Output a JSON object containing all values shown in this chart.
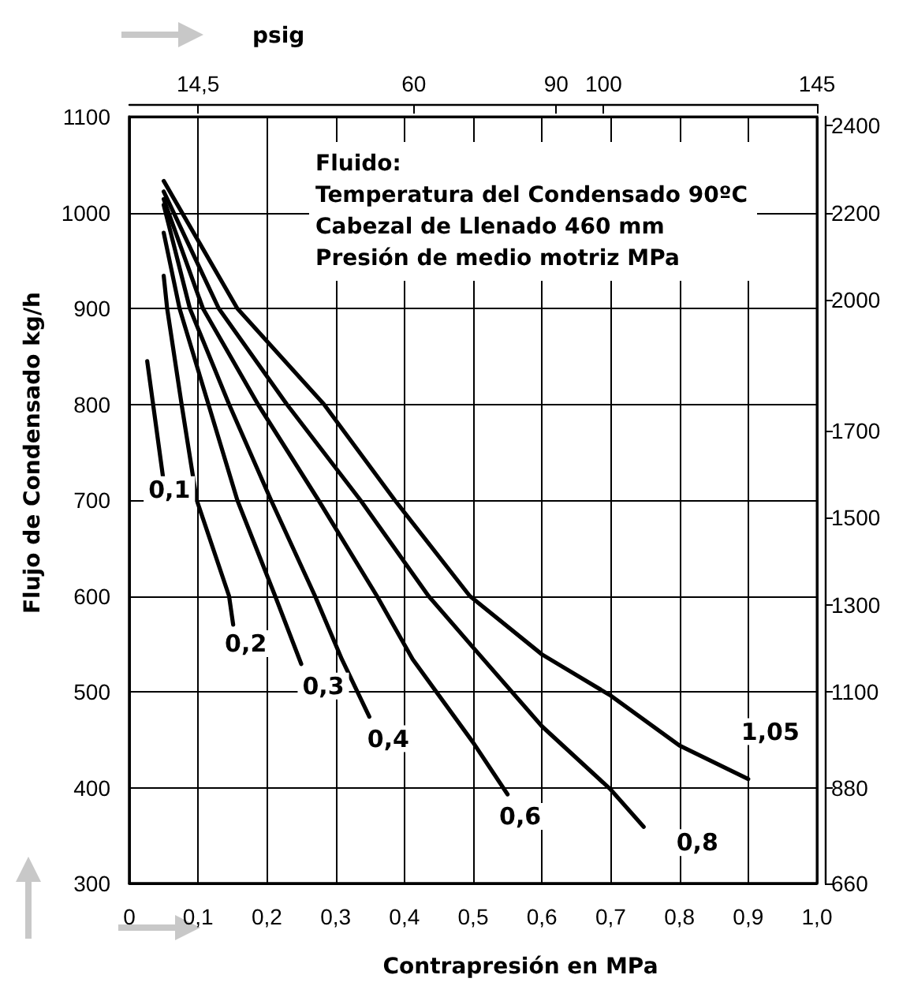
{
  "chart_data": {
    "type": "line",
    "xlabel": "Contrapresión en MPa",
    "ylabel": "Flujo de Condensado kg/h",
    "x2label": "psig",
    "annotations": [
      "Fluido:",
      "Temperatura del Condensado 90ºC",
      "Cabezal de Llenado 460 mm",
      "Presión de medio motriz MPa"
    ],
    "xlim": [
      0,
      1
    ],
    "xticks": [
      {
        "value": 0,
        "label": "0"
      },
      {
        "value": 0.1,
        "label": "0,1"
      },
      {
        "value": 0.2,
        "label": "0,2"
      },
      {
        "value": 0.3,
        "label": "0,3"
      },
      {
        "value": 0.4,
        "label": "0,4"
      },
      {
        "value": 0.5,
        "label": "0,5"
      },
      {
        "value": 0.6,
        "label": "0,6"
      },
      {
        "value": 0.7,
        "label": "0,7"
      },
      {
        "value": 0.8,
        "label": "0,8"
      },
      {
        "value": 0.9,
        "label": "0,9"
      },
      {
        "value": 1,
        "label": "1,0"
      }
    ],
    "x2lim": [
      0,
      145
    ],
    "x2ticks": [
      {
        "value": 14.5,
        "label": "14,5"
      },
      60,
      90,
      100,
      145
    ],
    "ylim": [
      300,
      1100
    ],
    "yticks": [
      300,
      400,
      500,
      600,
      700,
      800,
      900,
      1000,
      1100
    ],
    "y2lim": [
      660,
      2420
    ],
    "y2ticks": [
      660,
      880,
      1100,
      1300,
      1500,
      1700,
      2000,
      2200,
      2400
    ],
    "grid": true,
    "legend": false,
    "marker": "none",
    "line_style": "solid",
    "series": [
      {
        "name": "0,1",
        "color": "#000000",
        "x": [
          0.026,
          0.049
        ],
        "values": [
          845,
          724
        ]
      },
      {
        "name": "0,2",
        "color": "#000000",
        "x": [
          0.05,
          0.055,
          0.076,
          0.098,
          0.145,
          0.151
        ],
        "values": [
          934,
          900,
          800,
          700,
          600,
          570
        ]
      },
      {
        "name": "0,3",
        "color": "#000000",
        "x": [
          0.05,
          0.073,
          0.115,
          0.157,
          0.212,
          0.25
        ],
        "values": [
          979,
          900,
          800,
          700,
          600,
          529
        ]
      },
      {
        "name": "0,4",
        "color": "#000000",
        "x": [
          0.05,
          0.088,
          0.145,
          0.206,
          0.27,
          0.309,
          0.349
        ],
        "values": [
          1008,
          900,
          800,
          700,
          600,
          534,
          474
        ]
      },
      {
        "name": "0,6",
        "color": "#000000",
        "x": [
          0.05,
          0.107,
          0.187,
          0.275,
          0.36,
          0.412,
          0.5,
          0.55
        ],
        "values": [
          1014,
          900,
          800,
          700,
          600,
          534,
          447,
          393
        ]
      },
      {
        "name": "0,8",
        "color": "#000000",
        "x": [
          0.05,
          0.13,
          0.229,
          0.336,
          0.435,
          0.499,
          0.6,
          0.7,
          0.748
        ],
        "values": [
          1022,
          900,
          800,
          700,
          600,
          547,
          464,
          398,
          359
        ]
      },
      {
        "name": "1,05",
        "color": "#000000",
        "x": [
          0.05,
          0.157,
          0.283,
          0.386,
          0.495,
          0.6,
          0.7,
          0.8,
          0.9
        ],
        "values": [
          1033,
          900,
          800,
          700,
          600,
          539,
          496,
          444,
          409
        ]
      }
    ]
  }
}
